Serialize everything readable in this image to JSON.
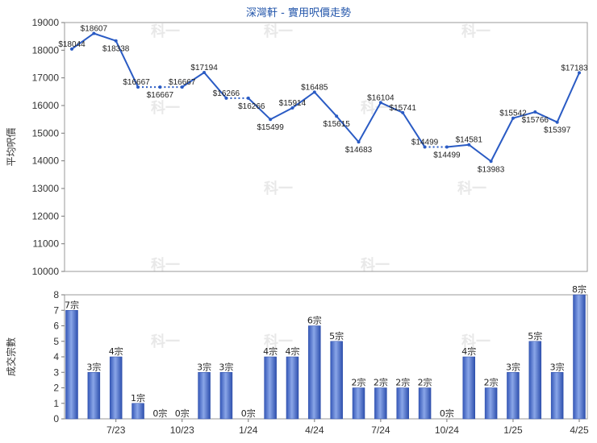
{
  "chart_data": [
    {
      "type": "line",
      "title": "深灣軒 - 實用呎價走勢",
      "ylabel": "平均呎價",
      "ylim": [
        10000,
        19000
      ],
      "yticks": [
        10000,
        11000,
        12000,
        13000,
        14000,
        15000,
        16000,
        17000,
        18000,
        19000
      ],
      "values": [
        18044,
        18607,
        18338,
        16667,
        16667,
        16667,
        17194,
        16266,
        16266,
        15499,
        15914,
        16485,
        15615,
        14683,
        16104,
        15741,
        14499,
        14499,
        14581,
        13983,
        15542,
        15766,
        15397,
        17183
      ],
      "labels": [
        "$18044",
        "$18607",
        "$18338",
        "$16667",
        "$16667",
        "$16667",
        "$17194",
        "$16266",
        "$16266",
        "$15499",
        "$15914",
        "$16485",
        "$15615",
        "$14683",
        "$16104",
        "$15741",
        "$14499",
        "$14499",
        "$14581",
        "$13983",
        "$15542",
        "$15766",
        "$15397",
        "$17183"
      ],
      "dotted_segments": [
        [
          3,
          5
        ],
        [
          7,
          8
        ],
        [
          16,
          17
        ]
      ],
      "line_color": "#2a5bc4"
    },
    {
      "type": "bar",
      "ylabel": "成交宗數",
      "ylim": [
        0,
        8
      ],
      "yticks": [
        0,
        1,
        2,
        3,
        4,
        5,
        6,
        7,
        8
      ],
      "values": [
        7,
        3,
        4,
        1,
        0,
        0,
        3,
        3,
        0,
        4,
        4,
        6,
        5,
        2,
        2,
        2,
        2,
        0,
        4,
        2,
        3,
        5,
        3,
        8
      ],
      "labels": [
        "7宗",
        "3宗",
        "4宗",
        "1宗",
        "0宗",
        "0宗",
        "3宗",
        "3宗",
        "0宗",
        "4宗",
        "4宗",
        "6宗",
        "5宗",
        "2宗",
        "2宗",
        "2宗",
        "2宗",
        "0宗",
        "4宗",
        "2宗",
        "3宗",
        "5宗",
        "3宗",
        "8宗"
      ],
      "xticks": [
        {
          "index": 2,
          "label": "7/23"
        },
        {
          "index": 5,
          "label": "10/23"
        },
        {
          "index": 8,
          "label": "1/24"
        },
        {
          "index": 11,
          "label": "4/24"
        },
        {
          "index": 14,
          "label": "7/24"
        },
        {
          "index": 17,
          "label": "10/24"
        },
        {
          "index": 20,
          "label": "1/25"
        },
        {
          "index": 23,
          "label": "4/25"
        }
      ],
      "bar_color": "#3b63c9"
    }
  ],
  "watermark": "科一"
}
